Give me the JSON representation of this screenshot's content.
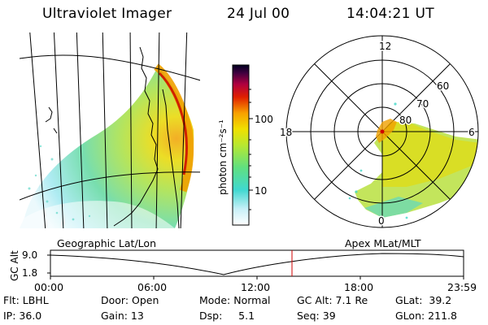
{
  "header": {
    "title": "Ultraviolet Imager",
    "date": "24 Jul 00",
    "time": "14:04:21 UT"
  },
  "colorbar": {
    "unit_label": "photon cm⁻²s⁻¹",
    "ticks": [
      "100",
      "10"
    ]
  },
  "polar_plot": {
    "mlt_labels": [
      "12",
      "18",
      "6",
      "0"
    ],
    "lat_labels": [
      "60",
      "70",
      "80"
    ]
  },
  "panel_labels": {
    "left": "Geographic Lat/Lon",
    "right": "Apex MLat/MLT"
  },
  "altitude_plot": {
    "ylabel": "GC Alt",
    "y_ticks": [
      "9.0",
      "1.8"
    ],
    "x_ticks": [
      "00:00",
      "06:00",
      "12:00",
      "18:00",
      "23:59"
    ],
    "marker_time": "14:04:21"
  },
  "info": {
    "flt": "Flt: LBHL",
    "door": "Door: Open",
    "mode": "Mode: Normal",
    "gc_alt": "GC Alt: 7.1 Re",
    "glat": "GLat:  39.2",
    "ip": "IP: 36.0",
    "gain": "Gain: 13",
    "dsp": "Dsp:     5.1",
    "seq": "Seq: 39",
    "glon": "GLon: 211.8"
  },
  "colors": {
    "aurora_low": "#40d8c8",
    "aurora_mid": "#a8e040",
    "aurora_high": "#f0a000",
    "aurora_peak": "#d02000",
    "marker": "#d00000"
  }
}
